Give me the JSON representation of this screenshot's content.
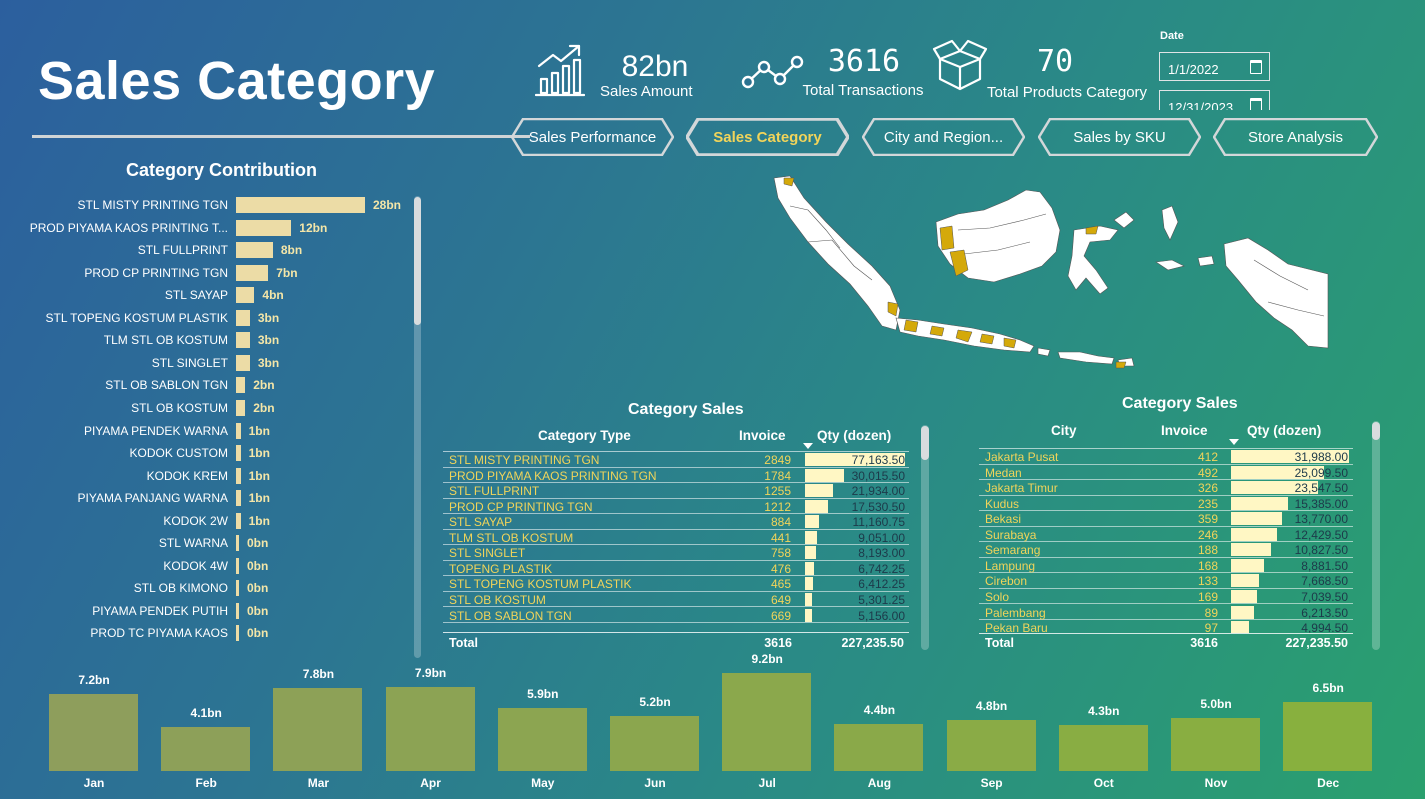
{
  "page": {
    "title": "Sales Category"
  },
  "kpis": [
    {
      "icon": "growth-chart-icon",
      "value": "82bn",
      "label": "Sales Amount"
    },
    {
      "icon": "transactions-line-icon",
      "value": "3616",
      "label": "Total Transactions"
    },
    {
      "icon": "open-box-icon",
      "value": "70",
      "label": "Total Products Category"
    }
  ],
  "date_filter": {
    "label": "Date",
    "start": "1/1/2022",
    "end": "12/31/2023"
  },
  "nav": {
    "tabs": [
      {
        "label": "Sales Performance",
        "active": false
      },
      {
        "label": "Sales Category",
        "active": true
      },
      {
        "label": "City and Region...",
        "active": false
      },
      {
        "label": "Sales by SKU",
        "active": false
      },
      {
        "label": "Store Analysis",
        "active": false
      }
    ]
  },
  "category_contribution": {
    "title": "Category Contribution",
    "chart_data": {
      "type": "bar",
      "orientation": "horizontal",
      "categories": [
        "STL MISTY PRINTING TGN",
        "PROD PIYAMA KAOS PRINTING T...",
        "STL FULLPRINT",
        "PROD CP PRINTING TGN",
        "STL SAYAP",
        "STL TOPENG KOSTUM PLASTIK",
        "TLM STL OB KOSTUM",
        "STL SINGLET",
        "STL OB SABLON TGN",
        "STL OB KOSTUM",
        "PIYAMA PENDEK WARNA",
        "KODOK CUSTOM",
        "KODOK KREM",
        "PIYAMA PANJANG WARNA",
        "KODOK 2W",
        "STL WARNA",
        "KODOK 4W",
        "STL OB KIMONO",
        "PIYAMA PENDEK PUTIH",
        "PROD TC PIYAMA KAOS"
      ],
      "values": [
        28,
        12,
        8,
        7,
        4,
        3,
        3,
        3,
        2,
        2,
        1,
        1,
        1,
        1,
        1,
        0,
        0,
        0,
        0,
        0
      ],
      "value_labels": [
        "28bn",
        "12bn",
        "8bn",
        "7bn",
        "4bn",
        "3bn",
        "3bn",
        "3bn",
        "2bn",
        "2bn",
        "1bn",
        "1bn",
        "1bn",
        "1bn",
        "1bn",
        "0bn",
        "0bn",
        "0bn",
        "0bn",
        "0bn"
      ],
      "unit": "bn",
      "color": "#ecdca6"
    }
  },
  "category_sales_table": {
    "title": "Category Sales",
    "columns": [
      "Category Type",
      "Invoice",
      "Qty (dozen)"
    ],
    "rows": [
      [
        "STL MISTY PRINTING TGN",
        "2849",
        "77,163.50",
        77163.5
      ],
      [
        "PROD PIYAMA KAOS PRINTING TGN",
        "1784",
        "30,015.50",
        30015.5
      ],
      [
        "STL FULLPRINT",
        "1255",
        "21,934.00",
        21934
      ],
      [
        "PROD CP PRINTING TGN",
        "1212",
        "17,530.50",
        17530.5
      ],
      [
        "STL SAYAP",
        "884",
        "11,160.75",
        11160.75
      ],
      [
        "TLM STL OB KOSTUM",
        "441",
        "9,051.00",
        9051
      ],
      [
        "STL SINGLET",
        "758",
        "8,193.00",
        8193
      ],
      [
        "TOPENG PLASTIK",
        "476",
        "6,742.25",
        6742.25
      ],
      [
        "STL TOPENG KOSTUM PLASTIK",
        "465",
        "6,412.25",
        6412.25
      ],
      [
        "STL OB KOSTUM",
        "649",
        "5,301.25",
        5301.25
      ],
      [
        "STL OB SABLON TGN",
        "669",
        "5,156.00",
        5156
      ]
    ],
    "total": {
      "label": "Total",
      "invoice": "3616",
      "qty": "227,235.50"
    }
  },
  "city_sales_table": {
    "title": "Category Sales",
    "columns": [
      "City",
      "Invoice",
      "Qty (dozen)"
    ],
    "rows": [
      [
        "Jakarta Pusat",
        "412",
        "31,988.00",
        31988
      ],
      [
        "Medan",
        "492",
        "25,099.50",
        25099.5
      ],
      [
        "Jakarta Timur",
        "326",
        "23,547.50",
        23547.5
      ],
      [
        "Kudus",
        "235",
        "15,385.00",
        15385
      ],
      [
        "Bekasi",
        "359",
        "13,770.00",
        13770
      ],
      [
        "Surabaya",
        "246",
        "12,429.50",
        12429.5
      ],
      [
        "Semarang",
        "188",
        "10,827.50",
        10827.5
      ],
      [
        "Lampung",
        "168",
        "8,881.50",
        8881.5
      ],
      [
        "Cirebon",
        "133",
        "7,668.50",
        7668.5
      ],
      [
        "Solo",
        "169",
        "7,039.50",
        7039.5
      ],
      [
        "Palembang",
        "89",
        "6,213.50",
        6213.5
      ],
      [
        "Pekan Baru",
        "97",
        "4,994.50",
        4994.5
      ]
    ],
    "total": {
      "label": "Total",
      "invoice": "3616",
      "qty": "227,235.50"
    }
  },
  "monthly_sales": {
    "chart_data": {
      "type": "bar",
      "categories": [
        "Jan",
        "Feb",
        "Mar",
        "Apr",
        "May",
        "Jun",
        "Jul",
        "Aug",
        "Sep",
        "Oct",
        "Nov",
        "Dec"
      ],
      "values": [
        7.2,
        4.1,
        7.8,
        7.9,
        5.9,
        5.2,
        9.2,
        4.4,
        4.8,
        4.3,
        5.0,
        6.5
      ],
      "value_labels": [
        "7.2bn",
        "4.1bn",
        "7.8bn",
        "7.9bn",
        "5.9bn",
        "5.2bn",
        "9.2bn",
        "4.4bn",
        "4.8bn",
        "4.3bn",
        "5.0bn",
        "6.5bn"
      ],
      "unit": "bn",
      "color": "#8e9e5c"
    }
  },
  "map": {
    "type": "choropleth",
    "region": "Indonesia",
    "highlight_color": "#d4a90a",
    "base_color": "#ffffff"
  }
}
